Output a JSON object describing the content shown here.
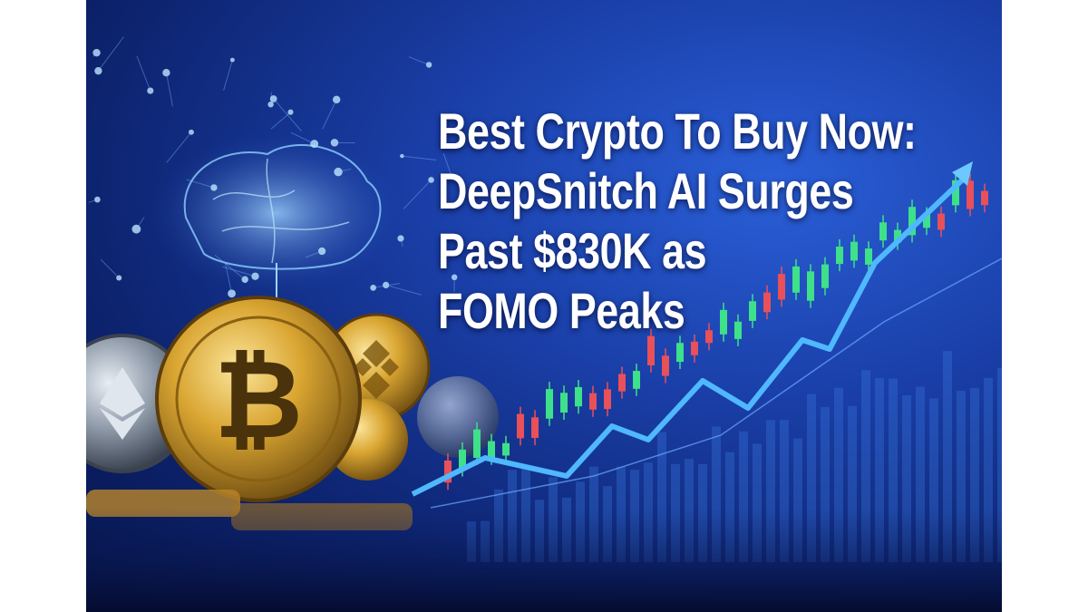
{
  "headline": {
    "lines": [
      "Best Crypto To Buy Now:",
      "DeepSnitch AI Surges",
      "Past $830K as",
      "FOMO Peaks"
    ]
  },
  "colors": {
    "background": "#1a3fa8",
    "candle_up": "#3ee08a",
    "candle_down": "#e8505a",
    "trend_line": "#4fb8ff",
    "coin_gold": "#d9a531",
    "text": "#ffffff"
  },
  "icons": [
    "bitcoin-coin",
    "ethereum-coin",
    "binance-coin",
    "ai-brain",
    "trend-arrow"
  ]
}
